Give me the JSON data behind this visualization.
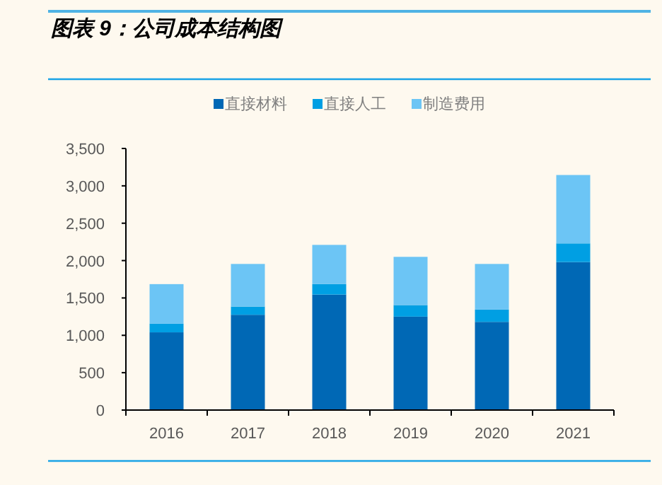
{
  "chart_data": {
    "type": "bar",
    "title": "图表 9：公司成本结构图",
    "categories": [
      "2016",
      "2017",
      "2018",
      "2019",
      "2020",
      "2021"
    ],
    "stacked": true,
    "series": [
      {
        "name": "直接材料",
        "color": "#0068b5",
        "values": [
          1040,
          1275,
          1545,
          1250,
          1180,
          1980
        ]
      },
      {
        "name": "直接人工",
        "color": "#009fe3",
        "values": [
          115,
          110,
          140,
          155,
          165,
          250
        ]
      },
      {
        "name": "制造费用",
        "color": "#6cc5f5",
        "values": [
          530,
          570,
          525,
          645,
          610,
          915
        ]
      }
    ],
    "ylim": [
      0,
      3500
    ],
    "yticks": [
      {
        "value": 0,
        "label": "0"
      },
      {
        "value": 500,
        "label": "500"
      },
      {
        "value": 1000,
        "label": "1,000"
      },
      {
        "value": 1500,
        "label": "1,500"
      },
      {
        "value": 2000,
        "label": "2,000"
      },
      {
        "value": 2500,
        "label": "2,500"
      },
      {
        "value": 3000,
        "label": "3,000"
      },
      {
        "value": 3500,
        "label": "3,500"
      }
    ],
    "grid": false,
    "legend": "top"
  }
}
